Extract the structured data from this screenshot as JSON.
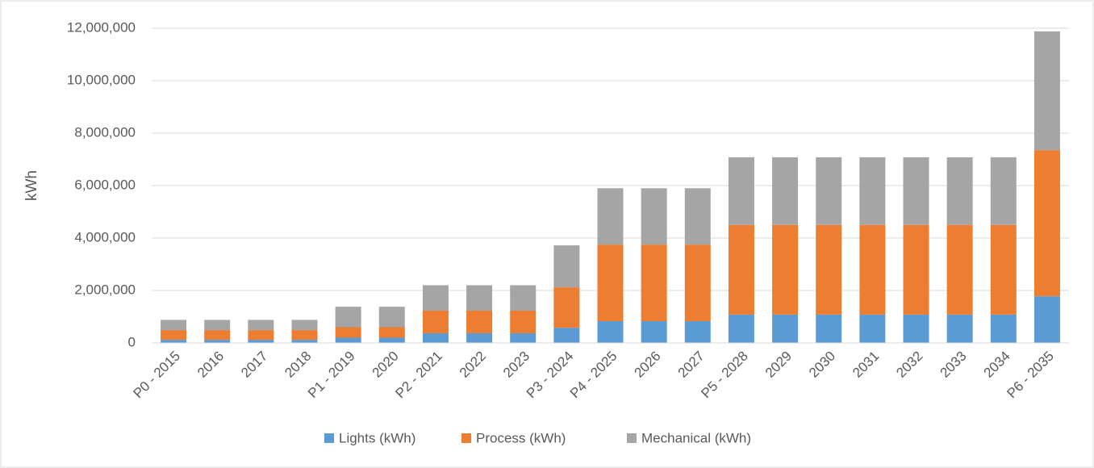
{
  "chart_data": {
    "type": "stacked_bar",
    "y_label": "kWh",
    "categories": [
      "P0 - 2015",
      "2016",
      "2017",
      "2018",
      "P1 - 2019",
      "2020",
      "P2 - 2021",
      "2022",
      "2023",
      "P3 - 2024",
      "P4 - 2025",
      "2026",
      "2027",
      "P5 - 2028",
      "2029",
      "2030",
      "2031",
      "2032",
      "2033",
      "2034",
      "P6 - 2035"
    ],
    "series": [
      {
        "name": "Lights (kWh)",
        "color": "#5b9bd5",
        "values": [
          120000,
          120000,
          120000,
          120000,
          200000,
          200000,
          370000,
          370000,
          370000,
          580000,
          830000,
          830000,
          830000,
          1080000,
          1080000,
          1080000,
          1080000,
          1080000,
          1080000,
          1080000,
          1780000
        ]
      },
      {
        "name": "Process (kWh)",
        "color": "#ed7d31",
        "values": [
          370000,
          370000,
          370000,
          370000,
          400000,
          400000,
          860000,
          860000,
          860000,
          1540000,
          2920000,
          2920000,
          2920000,
          3420000,
          3420000,
          3420000,
          3420000,
          3420000,
          3420000,
          3420000,
          5570000
        ]
      },
      {
        "name": "Mechanical (kWh)",
        "color": "#a5a5a5",
        "values": [
          390000,
          390000,
          390000,
          390000,
          780000,
          780000,
          970000,
          970000,
          970000,
          1600000,
          2150000,
          2150000,
          2150000,
          2580000,
          2580000,
          2580000,
          2580000,
          2580000,
          2580000,
          2580000,
          4530000
        ]
      }
    ],
    "ylim": [
      0,
      12000000
    ],
    "yticks": [
      0,
      {
        "value": 2000000,
        "label": "2,000,000"
      },
      {
        "value": 4000000,
        "label": "4,000,000"
      },
      {
        "value": 6000000,
        "label": "6,000,000"
      },
      {
        "value": 8000000,
        "label": "8,000,000"
      },
      {
        "value": 10000000,
        "label": "10,000,000"
      },
      {
        "value": 12000000,
        "label": "12,000,000"
      }
    ],
    "grid": true,
    "legend": "bottom"
  }
}
